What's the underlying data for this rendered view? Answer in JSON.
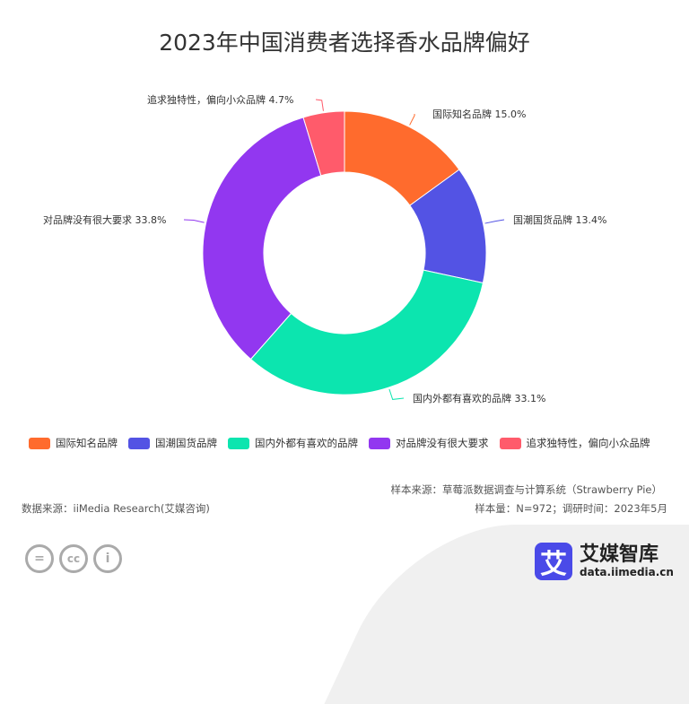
{
  "chart_data": {
    "type": "pie",
    "title": "2023年中国消费者选择香水品牌偏好",
    "categories": [
      "国际知名品牌",
      "国潮国货品牌",
      "国内外都有喜欢的品牌",
      "对品牌没有很大要求",
      "追求独特性，偏向小众品牌"
    ],
    "values": [
      15.0,
      13.4,
      33.1,
      33.8,
      4.7
    ],
    "data_labels": [
      "国际知名品牌 15.0%",
      "国潮国货品牌 13.4%",
      "国内外都有喜欢的品牌 33.1%",
      "对品牌没有很大要求 33.8%",
      "追求独特性，偏向小众品牌 4.7%"
    ],
    "colors": [
      "#FF6B2D",
      "#5353E4",
      "#0CE5AF",
      "#9237F0",
      "#FF5B6B"
    ],
    "legend_position": "bottom",
    "donut": true
  },
  "footer": {
    "sample_source": "样本来源：草莓派数据调查与计算系统（Strawberry Pie）",
    "data_source": "数据来源：iiMedia Research(艾媒咨询)",
    "sample_info": "样本量：N=972；调研时间：2023年5月",
    "logo_text": "艾媒智库",
    "logo_url": "data.iimedia.cn",
    "logo_char": "艾"
  }
}
